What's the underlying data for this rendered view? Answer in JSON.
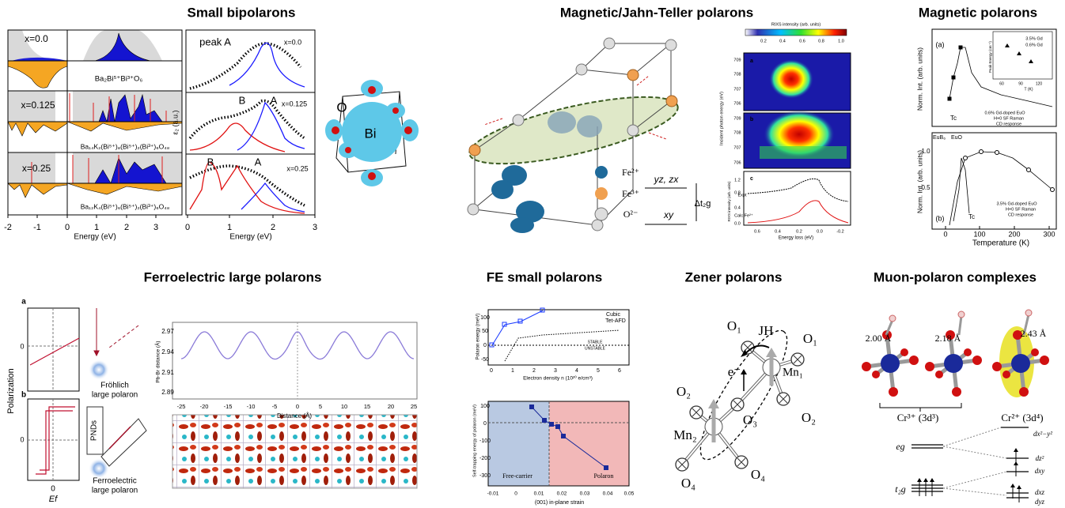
{
  "panels": [
    {
      "title": "Small bipolarons",
      "labels": [
        "x=0.0",
        "Ba₂Bi⁵⁺Bi³⁺O₆",
        "x=0.125",
        "Ba₁₄K₂(Bi⁵⁺)₈(Bi⁵⁺)₂(Bi³⁺)₆O₄₈",
        "x=0.25",
        "Ba₁₂K₄(Bi⁵⁺)₆(Bi⁵⁺)₂(Bi³⁺)₆O₄₈",
        "-2",
        "-1",
        "0",
        "1",
        "2",
        "3",
        "Energy (eV)",
        "peak A",
        "x=0.0",
        "B",
        "A",
        "x=0.125",
        "B",
        "A",
        "x=0.25",
        "0",
        "1",
        "2",
        "3",
        "Energy (eV)",
        "ε₂ (a.u.)",
        "O",
        "Bi"
      ]
    },
    {
      "title": "Magnetic/Jahn-Teller polarons",
      "labels": [
        "Fe²⁺",
        "Fe³⁺",
        "O²⁻",
        "yz, zx",
        "xy",
        "Δt₂g",
        "RIXS intensity (arb. units)",
        "0.2",
        "0.4",
        "0.6",
        "0.8",
        "1.0",
        "a",
        "b",
        "c",
        "Incident photon energy (eV)",
        "Expt",
        "Calc Fe²⁺",
        "Energy loss (eV)",
        "RIXS intensity (arb. units)",
        "709",
        "708",
        "707",
        "706",
        "709",
        "708",
        "707",
        "706",
        "0.6",
        "0.4",
        "0.2",
        "0.0",
        "-0.2",
        "1.2",
        "0.8",
        "0.4",
        "0.0"
      ]
    },
    {
      "title": "Magnetic polarons",
      "labels": [
        "(a)",
        "Norm. Int. (arb. units)",
        "Tc",
        "0.6% Gd-doped EuO",
        "H+0 SF Raman",
        "CD response",
        "3.5% Gd",
        "0.6% Gd",
        "Peak Energy (cm⁻¹)",
        "T (K)",
        "EuB₆",
        "EuO",
        "(b)",
        "Norm. Int. (arb. units)",
        "Tc",
        "3.5% Gd-doped EuO",
        "H+0 SF Raman",
        "CD response",
        "0",
        "100",
        "200",
        "300",
        "Temperature (K)",
        "1.0",
        "0.5",
        "60",
        "90",
        "120"
      ]
    },
    {
      "title": "Ferroelectric large polarons",
      "labels": [
        "a",
        "0",
        "b",
        "0",
        "Polarization",
        "0",
        "Ef",
        "Fröhlich",
        "large polaron",
        "PNDs",
        "Ferroelectric",
        "large polaron",
        "2.97",
        "2.94",
        "2.91",
        "2.89",
        "Pb-Br distance (Å)",
        "-25",
        "-20",
        "-15",
        "-10",
        "-5",
        "0",
        "5",
        "10",
        "15",
        "20",
        "25",
        "Distance (Å)"
      ]
    },
    {
      "title": "FE small polarons",
      "labels": [
        "Cubic",
        "Tet-AFD",
        "Polaron energy (meV)",
        "100",
        "50",
        "0",
        "-50",
        "STABLE",
        "UNSTABLE",
        "0",
        "1",
        "2",
        "3",
        "4",
        "5",
        "6",
        "Electron density n (10²⁰ e/cm³)",
        "Self-trapping energy of polaron (meV)",
        "100",
        "0",
        "-100",
        "-200",
        "-300",
        "Free-carrier",
        "Polaron",
        "-0.01",
        "0",
        "0.01",
        "0.02",
        "0.03",
        "0.04",
        "0.05",
        "(001) in-plane strain"
      ]
    },
    {
      "title": "Zener polarons",
      "labels": [
        "O₁",
        "JH",
        "O₁",
        "e⁻",
        "Mn₁",
        "O₂",
        "O₃",
        "O₂",
        "Mn₂",
        "O₄",
        "O₄"
      ]
    },
    {
      "title": "Muon-polaron complexes",
      "labels": [
        "2.00 Å",
        "2.18 Å",
        "2.43 Å",
        "Cr³⁺ (3d³)",
        "Cr²⁺ (3d⁴)",
        "eg",
        "t₂g",
        "dx²−y²",
        "dz²",
        "dxy",
        "dxz",
        "dyz"
      ]
    }
  ]
}
